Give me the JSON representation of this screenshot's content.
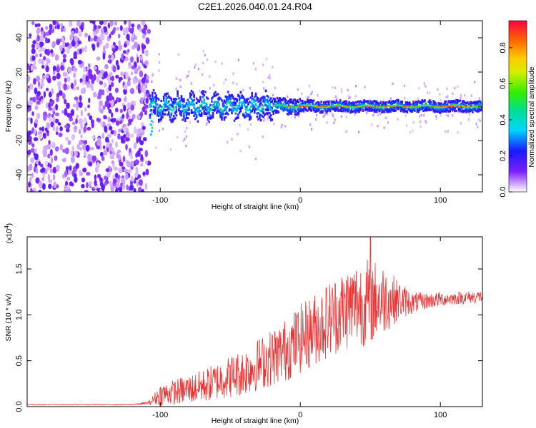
{
  "title": "C2E1.2026.040.01.24.R04",
  "chart_data": [
    {
      "type": "heatmap",
      "name": "spectrogram",
      "xlabel": "Height of straight line (km)",
      "ylabel": "Frequency (Hz)",
      "xlim": [
        -195,
        130
      ],
      "ylim": [
        -50,
        50
      ],
      "x_ticks": [
        -100,
        0,
        100
      ],
      "y_ticks": [
        -40,
        -20,
        0,
        20,
        40
      ],
      "x_tick_labels": [
        "-100",
        "0",
        "100"
      ],
      "y_tick_labels": [
        "-40",
        "-20",
        "0",
        "20",
        "40"
      ],
      "noise_region_km": [
        -195,
        -108
      ],
      "signal_onset_km": -108,
      "signal_center_hz": 0,
      "colorbar": {
        "label": "Normalized spectral amplitude",
        "range": [
          0.0,
          0.95
        ],
        "ticks": [
          0.0,
          0.2,
          0.4,
          0.6,
          0.8
        ],
        "tick_labels": [
          "0.0",
          "0.2",
          "0.4",
          "0.6",
          "0.8"
        ]
      }
    },
    {
      "type": "line",
      "name": "snr",
      "xlabel": "Height of straight line (km)",
      "ylabel": "SNR (10 * v/v)",
      "y_multiplier": "(x10",
      "y_multiplier_exp": "4",
      "y_multiplier_close": ")",
      "xlim": [
        -195,
        130
      ],
      "ylim": [
        0.0,
        1.85
      ],
      "x_ticks": [
        -100,
        0,
        100
      ],
      "y_ticks": [
        0.0,
        0.5,
        1.0,
        1.5
      ],
      "x_tick_labels": [
        "-100",
        "0",
        "100"
      ],
      "y_tick_labels": [
        "0.0",
        "0.5",
        "1.0",
        "1.5"
      ],
      "color": "#ee3333",
      "envelope": {
        "x": [
          -195,
          -120,
          -108,
          -100,
          -85,
          -70,
          -55,
          -40,
          -25,
          -10,
          0,
          10,
          20,
          30,
          40,
          50,
          60,
          70,
          80,
          90,
          100,
          110,
          120,
          130
        ],
        "y": [
          0.02,
          0.02,
          0.04,
          0.13,
          0.17,
          0.22,
          0.3,
          0.38,
          0.5,
          0.62,
          0.74,
          0.84,
          0.95,
          1.05,
          1.12,
          1.15,
          1.17,
          1.16,
          1.13,
          1.15,
          1.17,
          1.18,
          1.19,
          1.2
        ],
        "amplitude": [
          0.004,
          0.004,
          0.02,
          0.12,
          0.15,
          0.18,
          0.22,
          0.26,
          0.3,
          0.35,
          0.38,
          0.4,
          0.42,
          0.45,
          0.48,
          0.48,
          0.38,
          0.22,
          0.12,
          0.09,
          0.08,
          0.07,
          0.07,
          0.07
        ]
      },
      "peak": {
        "x": 50,
        "y": 1.85
      }
    }
  ]
}
